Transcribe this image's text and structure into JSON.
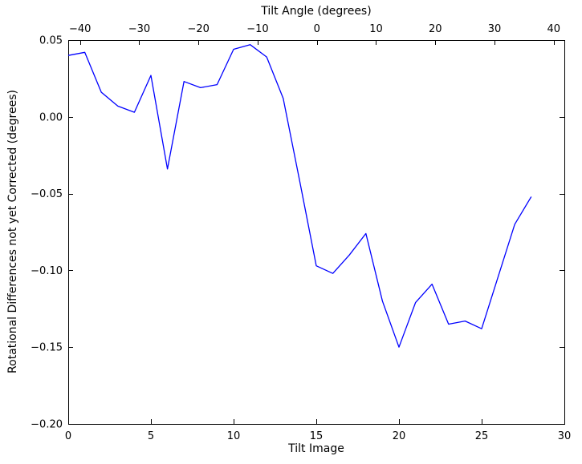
{
  "chart_data": {
    "type": "line",
    "title": "",
    "xlabel": "Tilt Image",
    "ylabel": "Rotational Differences not yet Corrected (degrees)",
    "top_axis": {
      "label": "Tilt Angle (degrees)",
      "ticks": [
        -40,
        -30,
        -20,
        -10,
        0,
        10,
        20,
        30,
        40
      ],
      "tick_labels": [
        "−40",
        "−30",
        "−20",
        "−10",
        "0",
        "10",
        "20",
        "30",
        "40"
      ],
      "lim": [
        -42.0,
        41.8
      ]
    },
    "x": [
      0,
      1,
      2,
      3,
      4,
      5,
      6,
      7,
      8,
      9,
      10,
      11,
      12,
      13,
      14,
      15,
      16,
      17,
      18,
      19,
      20,
      21,
      22,
      23,
      24,
      25,
      26,
      27,
      28
    ],
    "y": [
      0.04,
      0.042,
      0.016,
      0.007,
      0.003,
      0.027,
      -0.034,
      0.023,
      0.019,
      0.021,
      0.044,
      0.047,
      0.039,
      0.012,
      -0.042,
      -0.097,
      -0.102,
      -0.09,
      -0.076,
      -0.12,
      -0.15,
      -0.121,
      -0.109,
      -0.135,
      -0.133,
      -0.138,
      -0.104,
      -0.07,
      -0.052
    ],
    "xlim": [
      0,
      30
    ],
    "ylim": [
      -0.2,
      0.05
    ],
    "xticks": [
      0,
      5,
      10,
      15,
      20,
      25,
      30
    ],
    "xtick_labels": [
      "0",
      "5",
      "10",
      "15",
      "20",
      "25",
      "30"
    ],
    "yticks": [
      0.05,
      0.0,
      -0.05,
      -0.1,
      -0.15,
      -0.2
    ],
    "ytick_labels": [
      "0.05",
      "0.00",
      "−0.05",
      "−0.10",
      "−0.15",
      "−0.20"
    ],
    "line_color": "#0000ff",
    "axis_color": "#000000",
    "background_color": "#ffffff",
    "grid": false,
    "legend": null
  }
}
